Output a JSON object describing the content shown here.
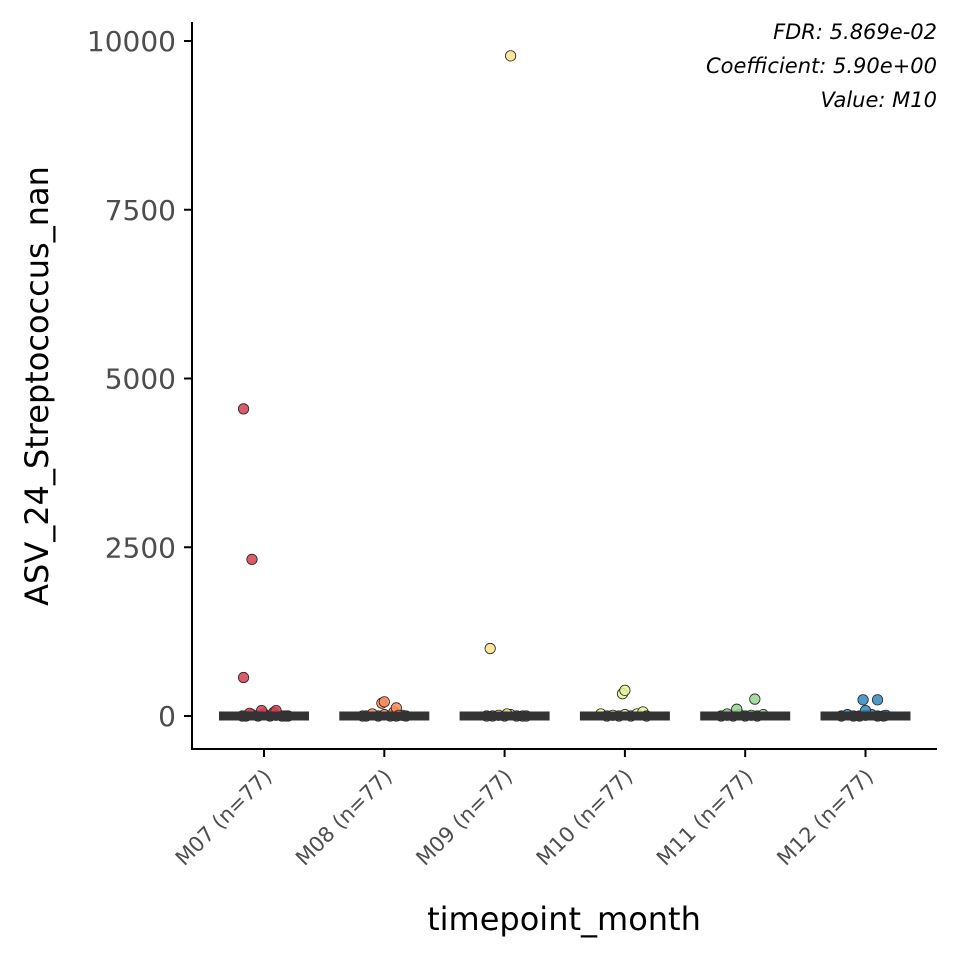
{
  "chart_data": {
    "type": "scatter",
    "subtype": "jitter-with-median",
    "xlabel": "timepoint_month",
    "ylabel": "ASV_24_Streptococcus_nan",
    "categories": [
      "M07 (n=77)",
      "M08 (n=77)",
      "M09 (n=77)",
      "M10 (n=77)",
      "M11 (n=77)",
      "M12 (n=77)"
    ],
    "ylim": [
      -480,
      10250
    ],
    "yticks": [
      0,
      2500,
      5000,
      7500,
      10000
    ],
    "yticklabels": [
      "0",
      "2500",
      "5000",
      "7500",
      "10000"
    ],
    "grid": false,
    "legend": "none",
    "annotations": [
      "FDR: 5.869e-02",
      "Coefficient: 5.90e+00",
      "Value: M10"
    ],
    "colors": [
      "#d53e4f",
      "#fc8d59",
      "#fee08b",
      "#e6f598",
      "#99d594",
      "#3288bd"
    ],
    "medians": [
      0,
      0,
      0,
      0,
      0,
      0
    ],
    "series": [
      {
        "category": "M07 (n=77)",
        "points": [
          [
            -0.15,
            0
          ],
          [
            -0.1,
            20
          ],
          [
            -0.05,
            0
          ],
          [
            0.0,
            30
          ],
          [
            0.05,
            0
          ],
          [
            0.1,
            10
          ],
          [
            0.15,
            0
          ],
          [
            0.2,
            0
          ],
          [
            -0.12,
            40
          ],
          [
            -0.02,
            80
          ],
          [
            0.08,
            50
          ],
          [
            0.1,
            80
          ],
          [
            -0.18,
            0
          ],
          [
            0.18,
            0
          ],
          [
            -0.17,
            4550
          ],
          [
            -0.1,
            2320
          ],
          [
            -0.17,
            570
          ]
        ]
      },
      {
        "category": "M08 (n=77)",
        "points": [
          [
            -0.15,
            0
          ],
          [
            -0.05,
            0
          ],
          [
            0.0,
            20
          ],
          [
            0.05,
            0
          ],
          [
            0.1,
            0
          ],
          [
            0.15,
            10
          ],
          [
            -0.1,
            30
          ],
          [
            0.08,
            60
          ],
          [
            0.1,
            120
          ],
          [
            -0.02,
            190
          ],
          [
            0.0,
            210
          ],
          [
            0.18,
            0
          ],
          [
            -0.18,
            0
          ],
          [
            0.12,
            10
          ]
        ]
      },
      {
        "category": "M09 (n=77)",
        "points": [
          [
            -0.15,
            0
          ],
          [
            -0.1,
            0
          ],
          [
            -0.05,
            10
          ],
          [
            0.0,
            0
          ],
          [
            0.05,
            20
          ],
          [
            0.1,
            0
          ],
          [
            0.15,
            0
          ],
          [
            0.18,
            0
          ],
          [
            0.02,
            30
          ],
          [
            -0.12,
            1000
          ],
          [
            0.05,
            9780
          ]
        ]
      },
      {
        "category": "M10 (n=77)",
        "points": [
          [
            -0.2,
            30
          ],
          [
            -0.15,
            0
          ],
          [
            -0.1,
            10
          ],
          [
            -0.05,
            0
          ],
          [
            0.0,
            20
          ],
          [
            0.05,
            0
          ],
          [
            0.1,
            30
          ],
          [
            0.15,
            60
          ],
          [
            0.18,
            0
          ],
          [
            -0.02,
            330
          ],
          [
            0.0,
            380
          ]
        ]
      },
      {
        "category": "M11 (n=77)",
        "points": [
          [
            -0.2,
            0
          ],
          [
            -0.15,
            10
          ],
          [
            -0.1,
            0
          ],
          [
            -0.05,
            20
          ],
          [
            0.0,
            0
          ],
          [
            0.05,
            10
          ],
          [
            0.1,
            0
          ],
          [
            0.15,
            20
          ],
          [
            -0.07,
            100
          ],
          [
            0.08,
            250
          ],
          [
            -0.15,
            30
          ]
        ]
      },
      {
        "category": "M12 (n=77)",
        "points": [
          [
            -0.2,
            0
          ],
          [
            -0.15,
            20
          ],
          [
            -0.1,
            0
          ],
          [
            -0.05,
            0
          ],
          [
            0.0,
            10
          ],
          [
            0.05,
            20
          ],
          [
            0.1,
            0
          ],
          [
            0.15,
            0
          ],
          [
            0.0,
            80
          ],
          [
            -0.02,
            240
          ],
          [
            0.1,
            240
          ],
          [
            0.17,
            10
          ]
        ]
      }
    ]
  }
}
